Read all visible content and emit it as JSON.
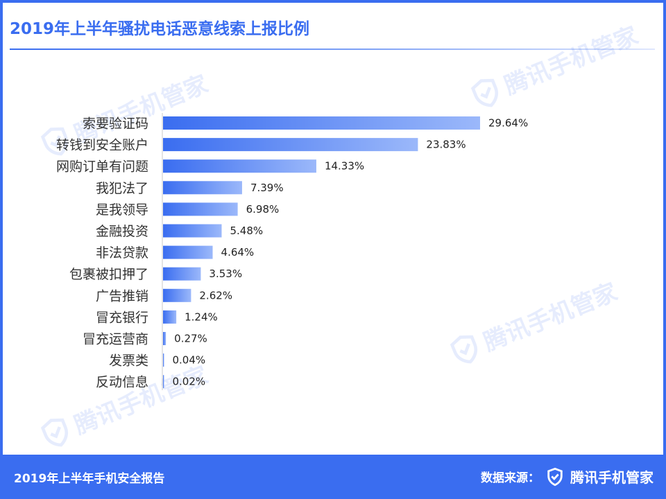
{
  "header": {
    "title": "2019年上半年骚扰电话恶意线索上报比例"
  },
  "watermark": {
    "text": "腾讯手机管家",
    "icon": "shield-check-icon"
  },
  "footer": {
    "report_name": "2019年上半年手机安全报告",
    "source_label": "数据来源：",
    "brand": "腾讯手机管家",
    "brand_icon": "shield-check-icon"
  },
  "colors": {
    "accent": "#3a6df0",
    "bar_start": "#3a6df0",
    "bar_end": "#9bb8fa"
  },
  "chart_data": {
    "type": "bar",
    "orientation": "horizontal",
    "title": "2019年上半年骚扰电话恶意线索上报比例",
    "categories": [
      "索要验证码",
      "转钱到安全账户",
      "网购订单有问题",
      "我犯法了",
      "是我领导",
      "金融投资",
      "非法贷款",
      "包裹被扣押了",
      "广告推销",
      "冒充银行",
      "冒充运营商",
      "发票类",
      "反动信息"
    ],
    "values": [
      29.64,
      23.83,
      14.33,
      7.39,
      6.98,
      5.48,
      4.64,
      3.53,
      2.62,
      1.24,
      0.27,
      0.04,
      0.02
    ],
    "labels": [
      "29.64%",
      "23.83%",
      "14.33%",
      "7.39%",
      "6.98%",
      "5.48%",
      "4.64%",
      "3.53%",
      "2.62%",
      "1.24%",
      "0.27%",
      "0.04%",
      "0.02%"
    ],
    "unit": "%",
    "xlim": [
      0,
      30
    ],
    "grid": false,
    "legend": "none"
  }
}
